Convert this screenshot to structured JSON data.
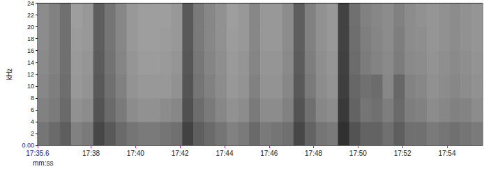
{
  "chart_data": {
    "type": "spectrogram",
    "x_label": "mm:ss",
    "y_label": "kHz",
    "xlim": [
      1055.6,
      1075.6
    ],
    "xticks": [
      {
        "value": 1055.6,
        "label": "17:35.6"
      },
      {
        "value": 1058,
        "label": "17:38"
      },
      {
        "value": 1060,
        "label": "17:40"
      },
      {
        "value": 1062,
        "label": "17:42"
      },
      {
        "value": 1064,
        "label": "17:44"
      },
      {
        "value": 1066,
        "label": "17:46"
      },
      {
        "value": 1068,
        "label": "17:48"
      },
      {
        "value": 1070,
        "label": "17:50"
      },
      {
        "value": 1072,
        "label": "17:52"
      },
      {
        "value": 1074,
        "label": "17:54"
      }
    ],
    "ylim": [
      0,
      24
    ],
    "yticks": [
      {
        "value": 0,
        "label": "0.00"
      },
      2,
      4,
      6,
      8,
      10,
      12,
      14,
      16,
      18,
      20,
      22,
      24
    ],
    "x_edges": [
      1055.6,
      1056.1,
      1056.6,
      1057.1,
      1057.6,
      1058.1,
      1058.6,
      1059.1,
      1059.6,
      1060.1,
      1060.6,
      1061.1,
      1061.6,
      1062.1,
      1062.6,
      1063.1,
      1063.6,
      1064.1,
      1064.6,
      1065.1,
      1065.6,
      1066.1,
      1066.6,
      1067.1,
      1067.6,
      1068.1,
      1068.6,
      1069.1,
      1069.6,
      1070.1,
      1070.6,
      1071.1,
      1071.6,
      1072.1,
      1072.6,
      1073.1,
      1073.6,
      1074.1,
      1074.6,
      1075.1,
      1075.6
    ],
    "y_edges": [
      0,
      4,
      8,
      12,
      16,
      20,
      24
    ],
    "cells": [
      [
        60,
        65,
        70,
        55,
        58,
        80,
        72,
        65,
        60,
        58,
        58,
        60,
        62,
        82,
        70,
        65,
        60,
        55,
        58,
        65,
        58,
        60,
        62,
        80,
        68,
        60,
        58,
        90,
        75,
        68,
        68,
        62,
        70,
        62,
        62,
        58,
        60,
        62,
        60,
        58
      ],
      [
        55,
        58,
        65,
        48,
        50,
        75,
        65,
        58,
        50,
        48,
        48,
        50,
        52,
        76,
        64,
        58,
        52,
        48,
        50,
        58,
        50,
        50,
        55,
        75,
        62,
        52,
        50,
        86,
        68,
        60,
        62,
        56,
        65,
        56,
        55,
        50,
        52,
        55,
        54,
        50
      ],
      [
        52,
        56,
        63,
        45,
        47,
        72,
        62,
        55,
        47,
        45,
        45,
        45,
        48,
        74,
        60,
        55,
        50,
        45,
        47,
        55,
        47,
        47,
        52,
        72,
        58,
        50,
        47,
        84,
        66,
        62,
        64,
        52,
        66,
        54,
        52,
        48,
        50,
        52,
        50,
        48
      ],
      [
        51,
        55,
        62,
        44,
        46,
        71,
        61,
        53,
        46,
        43,
        43,
        44,
        46,
        73,
        59,
        53,
        49,
        44,
        46,
        53,
        46,
        46,
        51,
        71,
        56,
        49,
        46,
        83,
        64,
        57,
        54,
        51,
        57,
        51,
        50,
        47,
        49,
        51,
        49,
        47
      ],
      [
        50,
        55,
        62,
        43,
        45,
        70,
        60,
        52,
        45,
        42,
        42,
        43,
        45,
        72,
        58,
        52,
        48,
        43,
        45,
        52,
        45,
        45,
        50,
        70,
        55,
        48,
        45,
        82,
        63,
        56,
        53,
        50,
        56,
        50,
        49,
        46,
        48,
        50,
        48,
        46
      ],
      [
        50,
        55,
        62,
        42,
        45,
        70,
        60,
        52,
        45,
        42,
        42,
        42,
        45,
        72,
        58,
        52,
        48,
        42,
        45,
        52,
        45,
        45,
        50,
        70,
        55,
        48,
        45,
        82,
        62,
        55,
        52,
        50,
        55,
        50,
        48,
        46,
        48,
        50,
        48,
        46
      ]
    ],
    "zlim": [
      0,
      100
    ],
    "grid": false
  }
}
